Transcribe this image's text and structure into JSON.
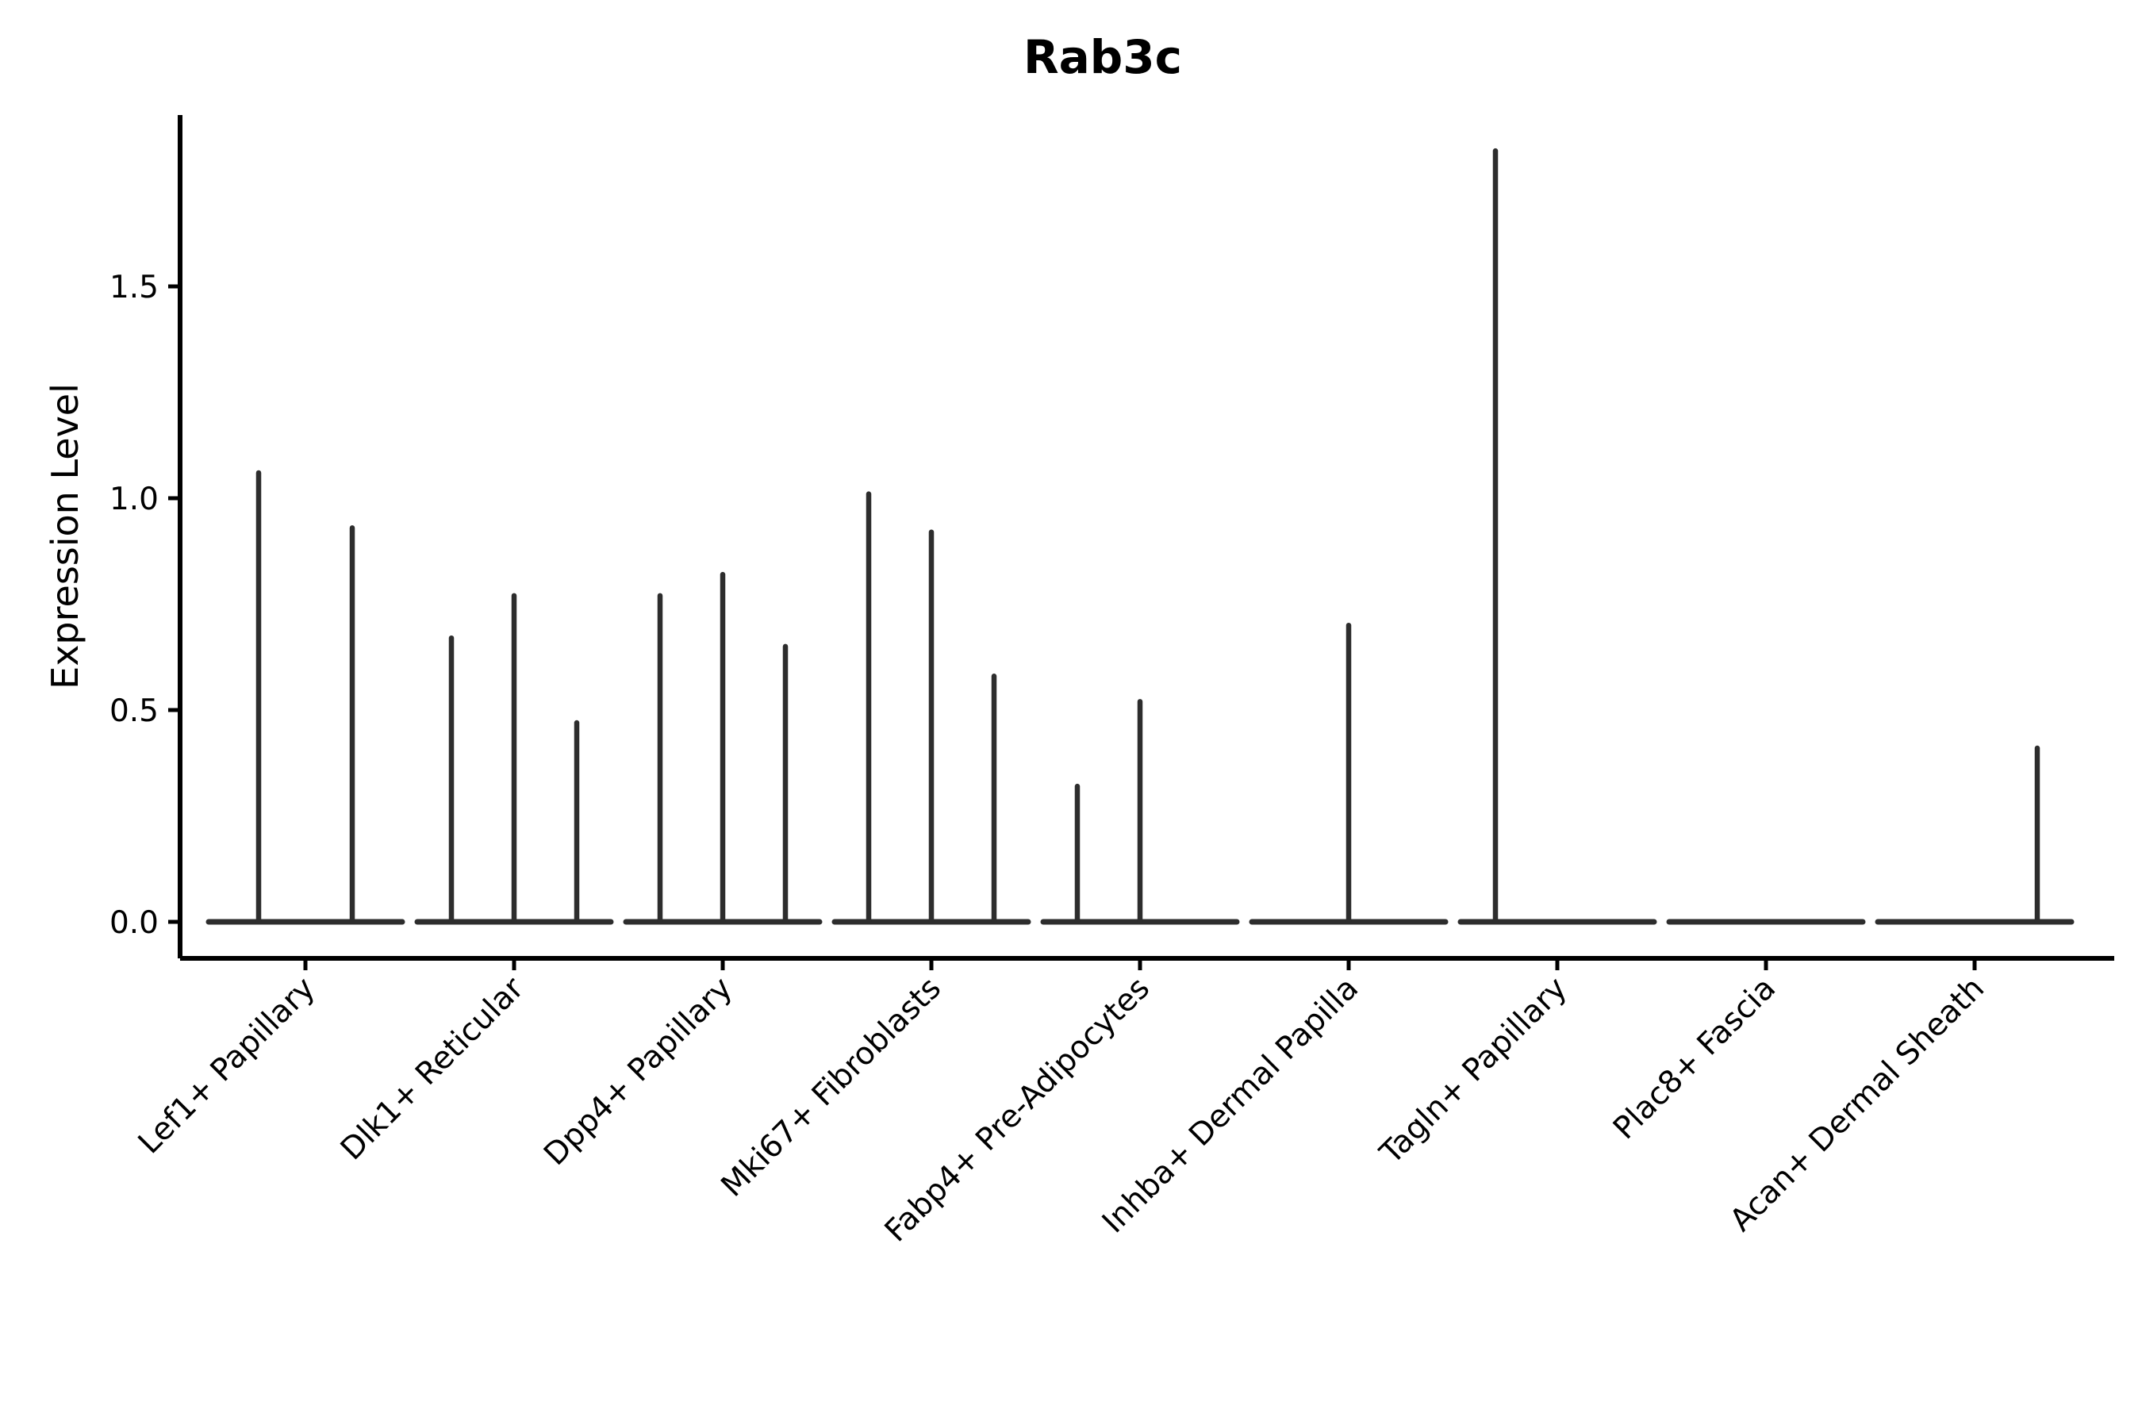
{
  "chart_data": {
    "type": "violin",
    "title": "Rab3c",
    "xlabel": "",
    "ylabel": "Expression Level",
    "ylim": [
      0,
      1.9
    ],
    "yticks": [
      "0.0",
      "0.5",
      "1.0",
      "1.5"
    ],
    "ytick_values": [
      0.0,
      0.5,
      1.0,
      1.5
    ],
    "grid": "off",
    "legend": "none",
    "violin_color": "#2d2d2d",
    "axis_color": "#000000",
    "note": "needle-thin violins; each category shows a flat base at 0 with narrow density spikes (peak expression) per sample violin",
    "categories": [
      {
        "label": "Lef1+ Papillary",
        "violins": [
          {
            "offset": -59,
            "peak": 1.06
          },
          {
            "offset": 59,
            "peak": 0.93
          }
        ]
      },
      {
        "label": "Dlk1+ Reticular",
        "violins": [
          {
            "offset": -79,
            "peak": 0.67
          },
          {
            "offset": 0,
            "peak": 0.77
          },
          {
            "offset": 79,
            "peak": 0.47
          }
        ]
      },
      {
        "label": "Dpp4+ Papillary",
        "violins": [
          {
            "offset": -79,
            "peak": 0.77
          },
          {
            "offset": 0,
            "peak": 0.82
          },
          {
            "offset": 79,
            "peak": 0.65
          }
        ]
      },
      {
        "label": "Mki67+ Fibroblasts",
        "violins": [
          {
            "offset": -79,
            "peak": 1.01
          },
          {
            "offset": 0,
            "peak": 0.92
          },
          {
            "offset": 79,
            "peak": 0.58
          }
        ]
      },
      {
        "label": "Fabp4+ Pre-Adipocytes",
        "violins": [
          {
            "offset": -79,
            "peak": 0.32
          },
          {
            "offset": 0,
            "peak": 0.52
          },
          {
            "offset": 79,
            "peak": 0.0
          }
        ]
      },
      {
        "label": "Inhba+ Dermal Papilla",
        "violins": [
          {
            "offset": -79,
            "peak": 0.0
          },
          {
            "offset": 0,
            "peak": 0.7
          },
          {
            "offset": 79,
            "peak": 0.0
          }
        ]
      },
      {
        "label": "Tagln+ Papillary",
        "violins": [
          {
            "offset": -78,
            "peak": 1.82
          },
          {
            "offset": 0,
            "peak": 0.0
          },
          {
            "offset": 78,
            "peak": 0.0
          }
        ]
      },
      {
        "label": "Plac8+ Fascia",
        "violins": [
          {
            "offset": -79,
            "peak": 0.0
          },
          {
            "offset": 0,
            "peak": 0.0
          },
          {
            "offset": 79,
            "peak": 0.0
          }
        ]
      },
      {
        "label": "Acan+ Dermal Sheath",
        "violins": [
          {
            "offset": -79,
            "peak": 0.0
          },
          {
            "offset": 0,
            "peak": 0.0
          },
          {
            "offset": 79,
            "peak": 0.41
          }
        ]
      }
    ]
  }
}
